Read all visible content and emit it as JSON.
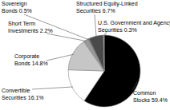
{
  "chart_data": {
    "type": "pie",
    "categories": [
      "Common Stocks",
      "Convertible Securities",
      "Corporate Bonds",
      "Short Term Investments",
      "Sovereign Bonds",
      "Structured Equity-Linked Securities",
      "U.S. Government and Agency Securities"
    ],
    "values": [
      59.4,
      16.1,
      14.8,
      2.2,
      0.5,
      6.7,
      0.3
    ],
    "value_labels": [
      "59.4%",
      "16.1%",
      "14.8%",
      "2.2%",
      "0.5%",
      "6.7%",
      "0.3%"
    ],
    "colors": [
      "#000000",
      "#ffffff",
      "#c6c6c6",
      "#9a9a9a",
      "#707070",
      "#4a4a4a",
      "#dcdcdc"
    ],
    "data_labels": true
  }
}
